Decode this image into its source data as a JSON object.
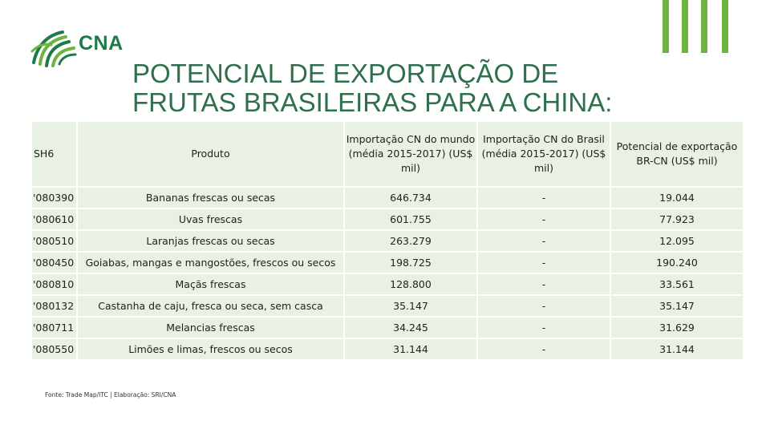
{
  "logo": {
    "text": "CNA"
  },
  "title": {
    "line1": "POTENCIAL DE EXPORTAÇÃO DE",
    "line2": "FRUTAS BRASILEIRAS PARA A CHINA:"
  },
  "table": {
    "headers": {
      "sh6": "SH6",
      "produto": "Produto",
      "import_mundo": "Importação CN do mundo (média 2015-2017) (US$ mil)",
      "import_brasil": "Importação CN do Brasil (média 2015-2017) (US$ mil)",
      "potencial": "Potencial de exportação BR-CN (US$ mil)"
    },
    "rows": [
      {
        "sh6": "'080390",
        "produto": "Bananas frescas ou secas",
        "mundo": "646.734",
        "brasil": "-",
        "potencial": "19.044"
      },
      {
        "sh6": "'080610",
        "produto": "Uvas frescas",
        "mundo": "601.755",
        "brasil": "-",
        "potencial": "77.923"
      },
      {
        "sh6": "'080510",
        "produto": "Laranjas frescas ou secas",
        "mundo": "263.279",
        "brasil": "-",
        "potencial": "12.095"
      },
      {
        "sh6": "'080450",
        "produto": "Goiabas, mangas e mangostões, frescos ou secos",
        "mundo": "198.725",
        "brasil": "-",
        "potencial": "190.240"
      },
      {
        "sh6": "'080810",
        "produto": "Maçãs frescas",
        "mundo": "128.800",
        "brasil": "-",
        "potencial": "33.561"
      },
      {
        "sh6": "'080132",
        "produto": "Castanha de caju, fresca ou seca, sem casca",
        "mundo": "35.147",
        "brasil": "-",
        "potencial": "35.147"
      },
      {
        "sh6": "'080711",
        "produto": "Melancias frescas",
        "mundo": "34.245",
        "brasil": "-",
        "potencial": "31.629"
      },
      {
        "sh6": "'080550",
        "produto": "Limões e limas, frescos ou secos",
        "mundo": "31.144",
        "brasil": "-",
        "potencial": "31.144"
      }
    ]
  },
  "source": "Fonte: Trade Map/ITC | Elaboração: SRI/CNA",
  "colors": {
    "brand_green": "#1f7a4a",
    "accent_green": "#6cb33f",
    "cell_bg": "#e8f1e4",
    "title": "#2f6f4c"
  }
}
